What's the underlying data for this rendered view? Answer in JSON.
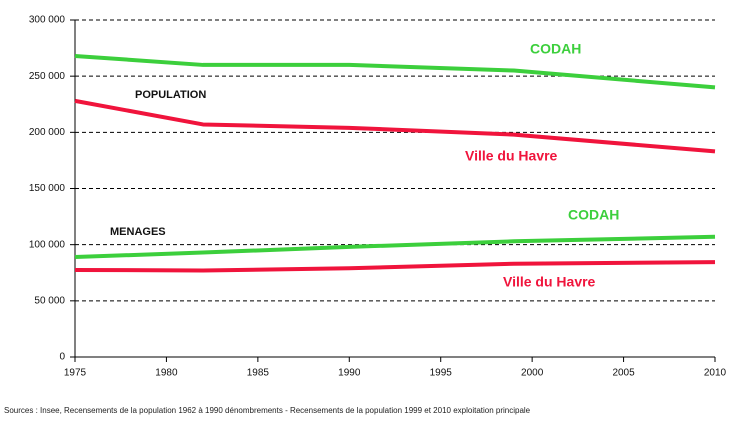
{
  "chart_data": {
    "type": "line",
    "x": [
      1975,
      1982,
      1990,
      1999,
      2010
    ],
    "series": [
      {
        "name": "CODAH",
        "color": "#3ccf3c",
        "values": [
          268000,
          260000,
          260000,
          255000,
          240000
        ]
      },
      {
        "name": "Ville du Havre",
        "color": "#f0143c",
        "values": [
          228000,
          207000,
          204000,
          198000,
          183000
        ]
      },
      {
        "name": "CODAH",
        "color": "#3ccf3c",
        "values": [
          89000,
          93000,
          98000,
          103000,
          107000
        ]
      },
      {
        "name": "Ville du Havre",
        "color": "#f0143c",
        "values": [
          77500,
          77000,
          79000,
          83000,
          84500
        ]
      }
    ],
    "annotations": [
      "POPULATION",
      "MENAGES"
    ],
    "xlim": [
      1975,
      2010
    ],
    "xticks": [
      1975,
      1980,
      1985,
      1990,
      1995,
      2000,
      2005,
      2010
    ],
    "ylim": [
      0,
      300000
    ],
    "yticks": [
      0,
      {
        "value": 50000,
        "label": "50 000"
      },
      {
        "value": 100000,
        "label": "100 000"
      },
      {
        "value": 150000,
        "label": "150 000"
      },
      {
        "value": 200000,
        "label": "200 000"
      },
      {
        "value": 250000,
        "label": "250 000"
      },
      {
        "value": 300000,
        "label": "300 000"
      }
    ],
    "grid": true,
    "source": "Sources : Insee, Recensements de la population 1962 à 1990 dénombrements - Recensements de la population 1999 et 2010 exploitation principale"
  }
}
